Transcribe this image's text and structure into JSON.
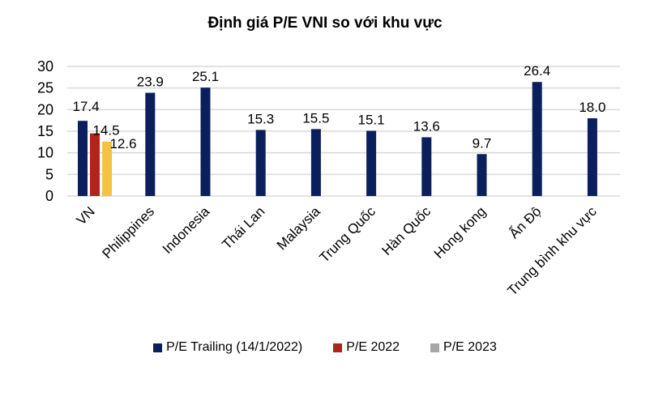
{
  "chart_data": {
    "type": "bar",
    "title": "Định giá P/E VNI so với khu vực",
    "xlabel": "",
    "ylabel": "",
    "ylim": [
      0,
      30
    ],
    "yticks": [
      0,
      5,
      10,
      15,
      20,
      25,
      30
    ],
    "grid": true,
    "legend_position": "bottom",
    "categories": [
      "VN",
      "Philippines",
      "Indonesia",
      "Thái Lan",
      "Malaysia",
      "Trung Quốc",
      "Hàn Quốc",
      "Hong kong",
      "Ấn Độ",
      "Trung bình khu vực"
    ],
    "series": [
      {
        "name": "P/E Trailing (14/1/2022)",
        "color": "#0b1f5c",
        "values": [
          17.4,
          23.9,
          25.1,
          15.3,
          15.5,
          15.1,
          13.6,
          9.7,
          26.4,
          18.0
        ]
      },
      {
        "name": "P/E 2022",
        "color": "#b0241b",
        "values": [
          14.5,
          null,
          null,
          null,
          null,
          null,
          null,
          null,
          null,
          null
        ]
      },
      {
        "name": "P/E 2023",
        "color": "#f5c242",
        "legend_color": "#a6a6a6",
        "values": [
          12.6,
          null,
          null,
          null,
          null,
          null,
          null,
          null,
          null,
          null
        ]
      }
    ]
  },
  "legend": [
    {
      "label": "P/E Trailing (14/1/2022)",
      "color": "#0b1f5c"
    },
    {
      "label": "P/E 2022",
      "color": "#b0241b"
    },
    {
      "label": "P/E 2023",
      "color": "#a6a6a6"
    }
  ]
}
